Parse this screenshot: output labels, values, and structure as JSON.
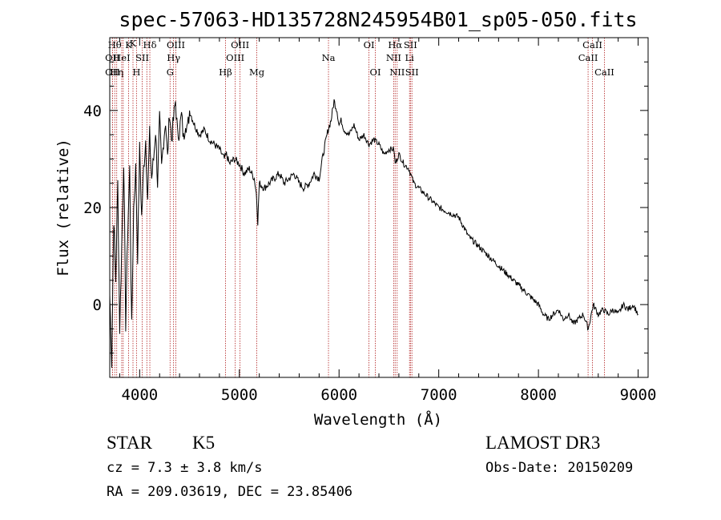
{
  "chart_data": {
    "type": "line",
    "title": "spec-57063-HD135728N245954B01_sp05-050.fits",
    "xlabel": "Wavelength (Å)",
    "ylabel": "Flux (relative)",
    "xlim": [
      3700,
      9100
    ],
    "ylim": [
      -15,
      55
    ],
    "xticks": [
      4000,
      5000,
      6000,
      7000,
      8000,
      9000
    ],
    "yticks": [
      0,
      20,
      40
    ],
    "series": [
      {
        "name": "spectrum",
        "x": [
          3700,
          3720,
          3740,
          3760,
          3780,
          3800,
          3820,
          3840,
          3860,
          3880,
          3900,
          3920,
          3940,
          3960,
          3980,
          4000,
          4020,
          4040,
          4060,
          4080,
          4100,
          4120,
          4140,
          4160,
          4180,
          4200,
          4220,
          4240,
          4260,
          4280,
          4300,
          4320,
          4340,
          4360,
          4380,
          4400,
          4420,
          4440,
          4460,
          4480,
          4500,
          4550,
          4600,
          4650,
          4700,
          4750,
          4800,
          4850,
          4870,
          4900,
          4950,
          5000,
          5050,
          5100,
          5150,
          5170,
          5185,
          5200,
          5250,
          5300,
          5350,
          5400,
          5450,
          5500,
          5550,
          5600,
          5650,
          5700,
          5750,
          5800,
          5850,
          5890,
          5920,
          5950,
          5980,
          6000,
          6020,
          6050,
          6100,
          6150,
          6200,
          6250,
          6300,
          6350,
          6400,
          6450,
          6500,
          6550,
          6563,
          6600,
          6650,
          6700,
          6750,
          6800,
          6850,
          6900,
          6950,
          7000,
          7100,
          7200,
          7300,
          7400,
          7500,
          7600,
          7700,
          7800,
          7900,
          8000,
          8050,
          8100,
          8150,
          8200,
          8250,
          8300,
          8350,
          8400,
          8450,
          8500,
          8550,
          8600,
          8650,
          8700,
          8750,
          8800,
          8850,
          8900,
          8950,
          9000
        ],
        "values": [
          2,
          -12,
          18,
          5,
          25,
          -5,
          12,
          30,
          -4,
          15,
          28,
          -5,
          20,
          28,
          10,
          32,
          18,
          28,
          34,
          22,
          35,
          26,
          30,
          36,
          25,
          38,
          28,
          34,
          38,
          30,
          40,
          34,
          38,
          42,
          35,
          36,
          39,
          34,
          38,
          36,
          40,
          37,
          35,
          36,
          34,
          33,
          32,
          30,
          31,
          29,
          30,
          29,
          27,
          28,
          26,
          23,
          17,
          25,
          24,
          25,
          26,
          27,
          25,
          26,
          27,
          25,
          24,
          25,
          27,
          26,
          32,
          36,
          38,
          42,
          40,
          37,
          38,
          36,
          35,
          37,
          34,
          35,
          33,
          34,
          33,
          31,
          32,
          32,
          29,
          31,
          29,
          28,
          25,
          24,
          23,
          22,
          21,
          20,
          19,
          18,
          14,
          12,
          10,
          8,
          6,
          4,
          2,
          0,
          -2,
          -3,
          -2,
          -1,
          -3,
          -2,
          -4,
          -3,
          -2,
          -5,
          0,
          -2,
          -1,
          -2,
          -1,
          -2,
          0,
          -1,
          0,
          -2
        ]
      }
    ],
    "lines": [
      {
        "wl": 3727,
        "label": "OII",
        "row": 2
      },
      {
        "wl": 3727,
        "label": "OII",
        "row": 3
      },
      {
        "wl": 3750,
        "label": "Hθ",
        "row": 1
      },
      {
        "wl": 3770,
        "label": "Hη",
        "row": 3
      },
      {
        "wl": 3820,
        "label": "HeI",
        "row": 2
      },
      {
        "wl": 3835,
        "label": "",
        "row": 0
      },
      {
        "wl": 3889,
        "label": "K",
        "row": 1
      },
      {
        "wl": 3933,
        "label": "K",
        "row": 0
      },
      {
        "wl": 3968,
        "label": "H",
        "row": 3
      },
      {
        "wl": 4026,
        "label": "SII",
        "row": 2
      },
      {
        "wl": 4072,
        "label": "",
        "row": 0
      },
      {
        "wl": 4102,
        "label": "Hδ",
        "row": 1
      },
      {
        "wl": 4305,
        "label": "G",
        "row": 3
      },
      {
        "wl": 4340,
        "label": "Hγ",
        "row": 2
      },
      {
        "wl": 4363,
        "label": "OIII",
        "row": 1
      },
      {
        "wl": 4861,
        "label": "Hβ",
        "row": 3
      },
      {
        "wl": 4959,
        "label": "OIII",
        "row": 2
      },
      {
        "wl": 5007,
        "label": "OIII",
        "row": 1
      },
      {
        "wl": 5175,
        "label": "Mg",
        "row": 3
      },
      {
        "wl": 5894,
        "label": "Na",
        "row": 2
      },
      {
        "wl": 6300,
        "label": "OI",
        "row": 1
      },
      {
        "wl": 6364,
        "label": "OI",
        "row": 3
      },
      {
        "wl": 6548,
        "label": "NII",
        "row": 2
      },
      {
        "wl": 6563,
        "label": "Hα",
        "row": 1
      },
      {
        "wl": 6583,
        "label": "NII",
        "row": 3
      },
      {
        "wl": 6707,
        "label": "Li",
        "row": 2
      },
      {
        "wl": 6716,
        "label": "SII",
        "row": 1
      },
      {
        "wl": 6731,
        "label": "SII",
        "row": 3
      },
      {
        "wl": 8498,
        "label": "CaII",
        "row": 2
      },
      {
        "wl": 8542,
        "label": "CaII",
        "row": 1
      },
      {
        "wl": 8662,
        "label": "CaII",
        "row": 3
      }
    ]
  },
  "info": {
    "object_class": "STAR",
    "subclass": "K5",
    "survey": "LAMOST DR3",
    "cz": "cz = 7.3 ± 3.8 km/s",
    "obs_date": "Obs-Date: 20150209",
    "coords": "RA = 209.03619, DEC =  23.85406"
  },
  "colors": {
    "line_marker": "#b22222",
    "spectrum": "#000000",
    "axis": "#000000"
  }
}
